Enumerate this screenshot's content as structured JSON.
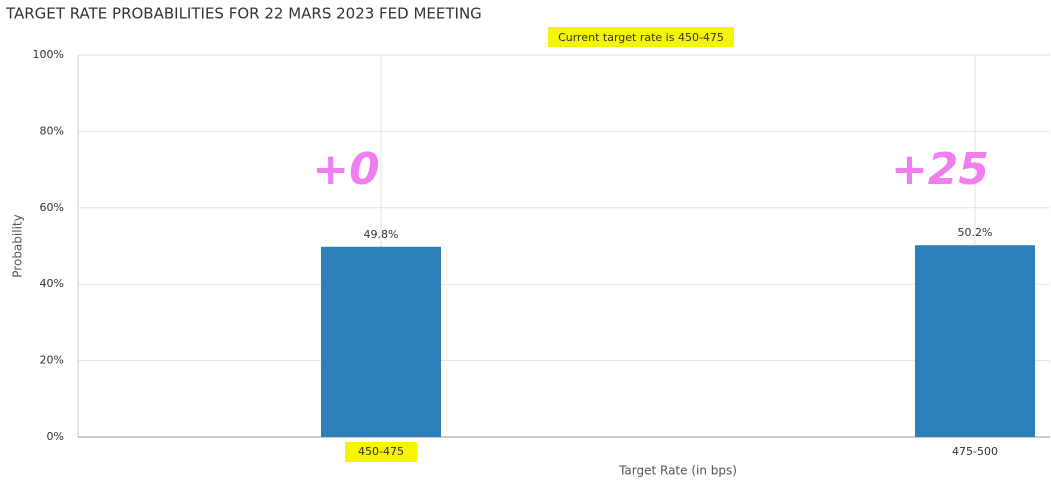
{
  "chart_data": {
    "type": "bar",
    "title": "TARGET RATE PROBABILITIES FOR 22 MARS 2023 FED MEETING",
    "subtitle": "Current target rate is 450-475",
    "x_label": "Target Rate (in bps)",
    "y_label": "Probability",
    "categories": [
      "450-475",
      "475-500"
    ],
    "values": [
      49.8,
      50.2
    ],
    "value_labels": [
      "49.8%",
      "50.2%"
    ],
    "color": "#2b80b9",
    "ylim": [
      0,
      100
    ],
    "yticks": [
      {
        "value": 0,
        "label": "0%"
      },
      {
        "value": 20,
        "label": "20%"
      },
      {
        "value": 40,
        "label": "40%"
      },
      {
        "value": 60,
        "label": "60%"
      },
      {
        "value": 80,
        "label": "80%"
      },
      {
        "value": 100,
        "label": "100%"
      }
    ],
    "grid": true,
    "annotations": [
      {
        "text": "+0",
        "category": 0
      },
      {
        "text": "+25",
        "category": 1
      }
    ],
    "annotation_color": "#f07ef0"
  }
}
